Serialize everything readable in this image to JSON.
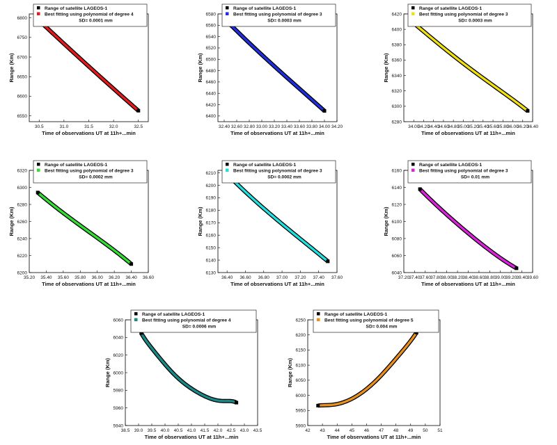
{
  "chart_data": [
    {
      "type": "scatter",
      "xlabel": "Time of observations UT at 11h+...min",
      "ylabel": "Range (Km)",
      "xlim": [
        30.3,
        32.7
      ],
      "ylim": [
        6535,
        6810
      ],
      "xticks": [
        30.5,
        31.0,
        31.5,
        32.0,
        32.5
      ],
      "yticks": [
        6550,
        6600,
        6650,
        6700,
        6750,
        6800
      ],
      "legend": {
        "series_label": "Range of satellite LAGEOS-1",
        "fit_label": "Best fitting using polynomial of degree 4",
        "sd": "SD= 0.0001 mm"
      },
      "colors": {
        "fit": "#e41a1c",
        "series": "#000000"
      },
      "series": [
        {
          "name": "Range of satellite LAGEOS-1",
          "x": [
            30.5,
            32.5
          ],
          "y": [
            6793,
            6563
          ]
        }
      ],
      "fit": {
        "degree": 4,
        "x": [
          30.5,
          31.0,
          31.5,
          32.0,
          32.5
        ],
        "y": [
          6793,
          6734,
          6676,
          6619,
          6563
        ]
      }
    },
    {
      "type": "scatter",
      "xlabel": "Time of observations UT at 11h+...min",
      "ylabel": "Range (Km)",
      "xlim": [
        32.3,
        34.2
      ],
      "ylim": [
        6390,
        6580
      ],
      "xticks": [
        32.4,
        32.6,
        32.8,
        33.0,
        33.2,
        33.4,
        33.6,
        33.8,
        34.0,
        34.2
      ],
      "yticks": [
        6400,
        6420,
        6440,
        6460,
        6480,
        6500,
        6520,
        6540,
        6560,
        6580
      ],
      "legend": {
        "series_label": "Range of satellite LAGEOS-1",
        "fit_label": "Best fitting using polynomial of degree 3",
        "sd": "SD= 0.0003 mm"
      },
      "colors": {
        "fit": "#1f2fe0",
        "series": "#000000"
      },
      "series": [
        {
          "name": "Range of satellite LAGEOS-1",
          "x": [
            32.5,
            34.0
          ],
          "y": [
            6561,
            6409
          ]
        }
      ],
      "fit": {
        "degree": 3,
        "x": [
          32.5,
          33.0,
          33.5,
          34.0
        ],
        "y": [
          6561,
          6508,
          6458,
          6409
        ]
      }
    },
    {
      "type": "scatter",
      "xlabel": "Time of observations UT at 11h+...min",
      "ylabel": "Range (Km)",
      "xlim": [
        33.8,
        36.4
      ],
      "ylim": [
        6280,
        6420
      ],
      "xticks": [
        34.0,
        34.2,
        34.4,
        34.6,
        34.8,
        35.0,
        35.2,
        35.4,
        35.6,
        35.8,
        36.0,
        36.2,
        36.4
      ],
      "yticks": [
        6280,
        6300,
        6320,
        6340,
        6360,
        6380,
        6400,
        6420
      ],
      "legend": {
        "series_label": "Range of satellite LAGEOS-1",
        "fit_label": "Best fitting using polynomial of degree 3",
        "sd": "SD= 0.0003 mm"
      },
      "colors": {
        "fit": "#f0e010",
        "series": "#000000"
      },
      "series": [
        {
          "name": "Range of satellite LAGEOS-1",
          "x": [
            34.0,
            36.3
          ],
          "y": [
            6408,
            6294
          ]
        }
      ],
      "fit": {
        "degree": 3,
        "x": [
          34.0,
          34.6,
          35.2,
          35.8,
          36.3
        ],
        "y": [
          6408,
          6376,
          6346,
          6318,
          6294
        ]
      }
    },
    {
      "type": "scatter",
      "xlabel": "Time of observations UT at 11h+...min",
      "ylabel": "Range (Km)",
      "xlim": [
        35.2,
        36.6
      ],
      "ylim": [
        6200,
        6320
      ],
      "xticks": [
        35.2,
        35.4,
        35.6,
        35.8,
        36.0,
        36.2,
        36.4,
        36.6
      ],
      "yticks": [
        6200,
        6220,
        6240,
        6260,
        6280,
        6300,
        6320
      ],
      "legend": {
        "series_label": "Range of satellite LAGEOS-1",
        "fit_label": "Best fitting using polynomial of degree 3",
        "sd": "SD= 0.0002 mm"
      },
      "colors": {
        "fit": "#33dd33",
        "series": "#000000"
      },
      "series": [
        {
          "name": "Range of satellite LAGEOS-1",
          "x": [
            35.3,
            36.4
          ],
          "y": [
            6294,
            6210
          ]
        }
      ],
      "fit": {
        "degree": 3,
        "x": [
          35.3,
          35.6,
          35.9,
          36.2,
          36.4
        ],
        "y": [
          6294,
          6270,
          6248,
          6226,
          6210
        ]
      }
    },
    {
      "type": "scatter",
      "xlabel": "Time of observations UT at 11h+...min",
      "ylabel": "Range (Km)",
      "xlim": [
        36.3,
        37.6
      ],
      "ylim": [
        6130,
        6212
      ],
      "xticks": [
        36.4,
        36.6,
        36.8,
        37.0,
        37.2,
        37.4,
        37.6
      ],
      "yticks": [
        6130,
        6140,
        6150,
        6160,
        6170,
        6180,
        6190,
        6200,
        6210
      ],
      "legend": {
        "series_label": "Range of satellite LAGEOS-1",
        "fit_label": "Best fitting using polynomial of degree 3",
        "sd": "SD= 0.0002 mm"
      },
      "colors": {
        "fit": "#20e0e0",
        "series": "#000000"
      },
      "series": [
        {
          "name": "Range of satellite LAGEOS-1",
          "x": [
            36.4,
            37.5
          ],
          "y": [
            6209,
            6139
          ]
        }
      ],
      "fit": {
        "degree": 3,
        "x": [
          36.4,
          36.7,
          37.0,
          37.3,
          37.5
        ],
        "y": [
          6209,
          6188,
          6169,
          6151,
          6139
        ]
      }
    },
    {
      "type": "scatter",
      "xlabel": "Time of observations UT at 11h+...min",
      "ylabel": "Range (Km)",
      "xlim": [
        37.2,
        39.6
      ],
      "ylim": [
        6040,
        6160
      ],
      "xticks": [
        37.2,
        37.4,
        37.6,
        37.8,
        38.0,
        38.2,
        38.4,
        38.6,
        38.8,
        39.0,
        39.2,
        39.4,
        39.6
      ],
      "yticks": [
        6040,
        6060,
        6080,
        6100,
        6120,
        6140,
        6160
      ],
      "legend": {
        "series_label": "Range of satellite LAGEOS-1",
        "fit_label": "Best fitting using polynomial of degree 3",
        "sd": "SD= 0.01 mm"
      },
      "colors": {
        "fit": "#dd22dd",
        "series": "#000000"
      },
      "series": [
        {
          "name": "Range of satellite LAGEOS-1",
          "x": [
            37.5,
            39.3
          ],
          "y": [
            6138,
            6045
          ]
        }
      ],
      "fit": {
        "degree": 3,
        "x": [
          37.5,
          38.0,
          38.5,
          39.0,
          39.3
        ],
        "y": [
          6138,
          6108,
          6081,
          6057,
          6045
        ]
      }
    },
    {
      "type": "scatter",
      "xlabel": "Time of observations UT at 11h+...min",
      "ylabel": "Range (Km)",
      "xlim": [
        38.5,
        43.5
      ],
      "ylim": [
        5940,
        6060
      ],
      "xticks": [
        38.5,
        39.0,
        39.5,
        40.0,
        40.5,
        41.0,
        41.5,
        42.0,
        42.5,
        43.0,
        43.5
      ],
      "yticks": [
        5940,
        5960,
        5980,
        6000,
        6020,
        6040,
        6060
      ],
      "legend": {
        "series_label": "Range of satellite LAGEOS-1",
        "fit_label": "Best fitting using polynomial of degree 4",
        "sd": "SD= 0.0006 mm"
      },
      "colors": {
        "fit": "#1a8a88",
        "series": "#000000"
      },
      "series": [
        {
          "name": "Range of satellite LAGEOS-1",
          "x": [
            39.1,
            42.7
          ],
          "y": [
            6045,
            5966
          ]
        }
      ],
      "fit": {
        "degree": 4,
        "x": [
          39.1,
          39.6,
          40.1,
          40.6,
          41.1,
          41.6,
          42.1,
          42.7
        ],
        "y": [
          6045,
          6024,
          6006,
          5991,
          5980,
          5972,
          5968,
          5966
        ]
      }
    },
    {
      "type": "scatter",
      "xlabel": "Time of observations UT at 11h+...min",
      "ylabel": "Range (Km)",
      "xlim": [
        42,
        51
      ],
      "ylim": [
        5900,
        6250
      ],
      "xticks": [
        42,
        43,
        44,
        45,
        46,
        47,
        48,
        49,
        50,
        51
      ],
      "yticks": [
        5900,
        5950,
        6000,
        6050,
        6100,
        6150,
        6200,
        6250
      ],
      "legend": {
        "series_label": "Range of satellite LAGEOS-1",
        "fit_label": "Best fitting using polynomial of degree 5",
        "sd": "SD= 0.004 mm"
      },
      "colors": {
        "fit": "#e89020",
        "series": "#000000"
      },
      "series": [
        {
          "name": "Range of satellite LAGEOS-1",
          "x": [
            42.7,
            49.4
          ],
          "y": [
            5966,
            6208
          ]
        }
      ],
      "fit": {
        "degree": 5,
        "x": [
          42.7,
          43.5,
          44.5,
          45.5,
          46.5,
          47.5,
          48.5,
          49.4
        ],
        "y": [
          5966,
          5968,
          5978,
          6003,
          6042,
          6093,
          6150,
          6208
        ]
      }
    }
  ]
}
